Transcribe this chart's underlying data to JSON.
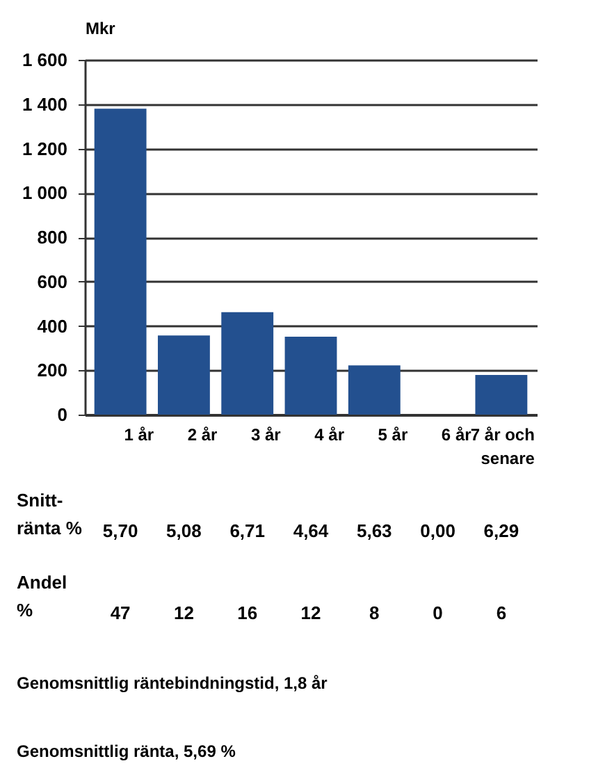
{
  "chart_data": {
    "type": "bar",
    "ylabel": "Mkr",
    "categories": [
      "1 år",
      "2 år",
      "3 år",
      "4 år",
      "5 år",
      "6 år",
      "7 år och\nsenare"
    ],
    "values": [
      1380,
      357,
      462,
      351,
      222,
      0,
      179
    ],
    "color": "#23508f",
    "ylim": [
      0,
      1600
    ],
    "yticks": [
      {
        "value": 0,
        "label": "0"
      },
      {
        "value": 200,
        "label": "200"
      },
      {
        "value": 400,
        "label": "400"
      },
      {
        "value": 600,
        "label": "600"
      },
      {
        "value": 800,
        "label": "800"
      },
      {
        "value": 1000,
        "label": "1 000"
      },
      {
        "value": 1200,
        "label": "1 200"
      },
      {
        "value": 1400,
        "label": "1 400"
      },
      {
        "value": 1600,
        "label": "1 600"
      }
    ],
    "grid": "y",
    "annotations": [
      "Snitt-\nränta %",
      "5,70",
      "5,08",
      "6,71",
      "4,64",
      "5,63",
      "0,00",
      "6,29",
      "Andel\n%",
      "47",
      "12",
      "16",
      "12",
      "8",
      "0",
      "6",
      "Genomsnittlig räntebindningstid, 1,8 år",
      "Genomsnittlig ränta, 5,69 %"
    ]
  }
}
